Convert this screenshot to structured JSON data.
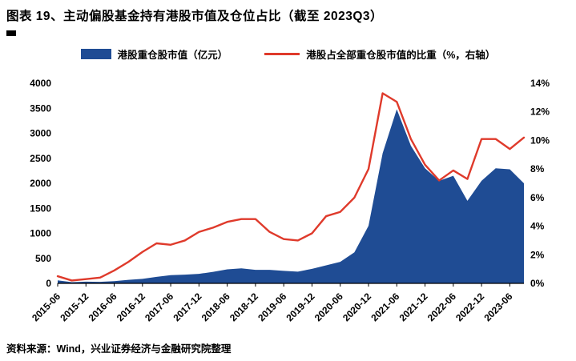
{
  "page": {
    "title": "图表 19、主动偏股基金持有港股市值及仓位占比（截至 2023Q3）",
    "source": "资料来源：Wind，兴业证券经济与金融研究院整理"
  },
  "legend": {
    "area_label": "港股重仓股市值（亿元）",
    "line_label": "港股占全部重仓股市值的比重（%，右轴）"
  },
  "colors": {
    "area": "#1F4C94",
    "line": "#DF3A2B",
    "axis": "#000000"
  },
  "chart_data": {
    "type": "area+line",
    "title": "主动偏股基金持有港股市值及仓位占比（截至2023Q3）",
    "x": [
      "2015-06",
      "2015-09",
      "2015-12",
      "2016-03",
      "2016-06",
      "2016-09",
      "2016-12",
      "2017-03",
      "2017-06",
      "2017-09",
      "2017-12",
      "2018-03",
      "2018-06",
      "2018-09",
      "2018-12",
      "2019-03",
      "2019-06",
      "2019-09",
      "2019-12",
      "2020-03",
      "2020-06",
      "2020-09",
      "2020-12",
      "2021-03",
      "2021-06",
      "2021-09",
      "2021-12",
      "2022-03",
      "2022-06",
      "2022-09",
      "2022-12",
      "2023-03",
      "2023-06",
      "2023-09"
    ],
    "x_tick_labels": [
      "2015-06",
      "2015-12",
      "2016-06",
      "2016-12",
      "2017-06",
      "2017-12",
      "2018-06",
      "2018-12",
      "2019-06",
      "2019-12",
      "2020-06",
      "2020-12",
      "2021-06",
      "2021-12",
      "2022-06",
      "2022-12",
      "2023-06"
    ],
    "series": [
      {
        "name": "港股重仓股市值（亿元）",
        "type": "area",
        "axis": "left",
        "values": [
          60,
          25,
          35,
          30,
          45,
          70,
          90,
          130,
          165,
          175,
          190,
          230,
          280,
          300,
          270,
          270,
          250,
          235,
          290,
          360,
          430,
          620,
          1150,
          2600,
          3480,
          2750,
          2300,
          2050,
          2150,
          1650,
          2050,
          2300,
          2280,
          2000
        ]
      },
      {
        "name": "港股占全部重仓股市值的比重（%，右轴）",
        "type": "line",
        "axis": "right",
        "values": [
          0.5,
          0.2,
          0.3,
          0.4,
          0.9,
          1.5,
          2.2,
          2.8,
          2.7,
          3.0,
          3.6,
          3.9,
          4.3,
          4.5,
          4.5,
          3.6,
          3.1,
          3.0,
          3.5,
          4.7,
          5.0,
          6.0,
          8.0,
          13.3,
          12.7,
          10.1,
          8.3,
          7.2,
          7.9,
          7.3,
          10.1,
          10.1,
          9.4,
          10.2
        ]
      }
    ],
    "left_axis": {
      "min": 0,
      "max": 4000,
      "step": 500,
      "suffix": ""
    },
    "right_axis": {
      "min": 0,
      "max": 14,
      "step": 2,
      "suffix": "%"
    },
    "grid": false,
    "legend_position": "top"
  }
}
